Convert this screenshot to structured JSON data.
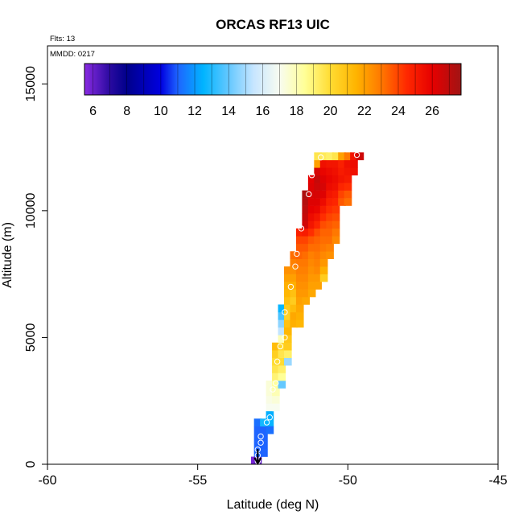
{
  "chart_data": {
    "type": "heatmap",
    "title": "ORCAS RF13 UIC",
    "annotations": {
      "flights": "Flts: 13",
      "date": "MMDD: 0217"
    },
    "xlabel": "Latitude (deg N)",
    "ylabel": "Altitude (m)",
    "xlim": [
      -60,
      -45
    ],
    "ylim": [
      0,
      16500
    ],
    "x_ticks": [
      -60,
      -55,
      -50,
      -45
    ],
    "x_tick_labels": [
      "-60",
      "-55",
      "-50",
      "-45"
    ],
    "y_ticks": [
      0,
      5000,
      10000,
      15000
    ],
    "y_tick_labels": [
      "0",
      "5000",
      "10000",
      "15000"
    ],
    "grid": false,
    "colorbar": {
      "range": [
        5.5,
        27.7
      ],
      "ticks": [
        6,
        8,
        10,
        12,
        14,
        16,
        18,
        20,
        22,
        24,
        26
      ],
      "tick_labels": [
        "6",
        "8",
        "10",
        "12",
        "14",
        "16",
        "18",
        "20",
        "22",
        "24",
        "26"
      ],
      "stops": [
        {
          "value": 5.5,
          "color": "#8a2be2"
        },
        {
          "value": 7.0,
          "color": "#2a0aa0"
        },
        {
          "value": 8.0,
          "color": "#00008b"
        },
        {
          "value": 10.0,
          "color": "#0000e0"
        },
        {
          "value": 11.0,
          "color": "#1e64ff"
        },
        {
          "value": 12.5,
          "color": "#00b4ff"
        },
        {
          "value": 14.0,
          "color": "#64c8ff"
        },
        {
          "value": 15.5,
          "color": "#c8e6ff"
        },
        {
          "value": 17.0,
          "color": "#f8fcf0"
        },
        {
          "value": 18.5,
          "color": "#ffff96"
        },
        {
          "value": 20.0,
          "color": "#ffdc32"
        },
        {
          "value": 21.5,
          "color": "#ffb400"
        },
        {
          "value": 23.0,
          "color": "#ff7800"
        },
        {
          "value": 24.5,
          "color": "#ff2800"
        },
        {
          "value": 26.0,
          "color": "#e60000"
        },
        {
          "value": 27.7,
          "color": "#a01414"
        }
      ]
    },
    "cell_size": {
      "lat": 0.25,
      "alt": 300
    },
    "cells": [
      [
        -53.1,
        150,
        5.8
      ],
      [
        -53.0,
        150,
        6.2
      ],
      [
        -53.0,
        450,
        11.0
      ],
      [
        -53.0,
        750,
        11.0
      ],
      [
        -53.0,
        1050,
        11.0
      ],
      [
        -53.0,
        1350,
        11.0
      ],
      [
        -53.0,
        1650,
        11.2
      ],
      [
        -52.8,
        450,
        11.0
      ],
      [
        -52.8,
        750,
        11.0
      ],
      [
        -52.8,
        1050,
        11.0
      ],
      [
        -52.8,
        1350,
        11.0
      ],
      [
        -52.8,
        1650,
        12.8
      ],
      [
        -52.6,
        1650,
        12.6
      ],
      [
        -52.6,
        1950,
        12.4
      ],
      [
        -52.6,
        1350,
        11.2
      ],
      [
        -52.6,
        2250,
        17.0
      ],
      [
        -52.6,
        2550,
        17.2
      ],
      [
        -52.6,
        2850,
        17.4
      ],
      [
        -52.6,
        3150,
        17.4
      ],
      [
        -52.4,
        2250,
        17.0
      ],
      [
        -52.4,
        2550,
        17.4
      ],
      [
        -52.4,
        2850,
        18.0
      ],
      [
        -52.4,
        3150,
        18.4
      ],
      [
        -52.4,
        3450,
        19.0
      ],
      [
        -52.4,
        3750,
        19.6
      ],
      [
        -52.4,
        4050,
        20.0
      ],
      [
        -52.4,
        4350,
        20.5
      ],
      [
        -52.4,
        4650,
        21.2
      ],
      [
        -52.2,
        3150,
        14.0
      ],
      [
        -52.2,
        3450,
        18.5
      ],
      [
        -52.2,
        3750,
        19.2
      ],
      [
        -52.2,
        4050,
        20.0
      ],
      [
        -52.2,
        4350,
        19.6
      ],
      [
        -52.2,
        4650,
        20.2
      ],
      [
        -52.2,
        4950,
        18.0
      ],
      [
        -52.2,
        5250,
        15.4
      ],
      [
        -52.2,
        5550,
        14.6
      ],
      [
        -52.2,
        5850,
        13.6
      ],
      [
        -52.2,
        6150,
        12.6
      ],
      [
        -52.0,
        4050,
        14.8
      ],
      [
        -52.0,
        4350,
        19.2
      ],
      [
        -52.0,
        4650,
        20.6
      ],
      [
        -52.0,
        4950,
        20.8
      ],
      [
        -52.0,
        5250,
        21.4
      ],
      [
        -52.0,
        5550,
        21.0
      ],
      [
        -52.0,
        5850,
        20.4
      ],
      [
        -52.0,
        6150,
        20.6
      ],
      [
        -52.0,
        6450,
        21.0
      ],
      [
        -52.0,
        6750,
        21.4
      ],
      [
        -52.0,
        7050,
        21.6
      ],
      [
        -52.0,
        7350,
        22.0
      ],
      [
        -52.0,
        7650,
        22.4
      ],
      [
        -51.8,
        5550,
        21.6
      ],
      [
        -51.8,
        5850,
        21.8
      ],
      [
        -51.8,
        6150,
        21.2
      ],
      [
        -51.8,
        6450,
        20.6
      ],
      [
        -51.8,
        6750,
        21.0
      ],
      [
        -51.8,
        7050,
        21.6
      ],
      [
        -51.8,
        7350,
        22.0
      ],
      [
        -51.8,
        7650,
        22.4
      ],
      [
        -51.8,
        7950,
        22.8
      ],
      [
        -51.8,
        8250,
        23.2
      ],
      [
        -51.6,
        5550,
        21.4
      ],
      [
        -51.6,
        5850,
        21.6
      ],
      [
        -51.6,
        6150,
        21.8
      ],
      [
        -51.6,
        6450,
        22.0
      ],
      [
        -51.6,
        6750,
        22.2
      ],
      [
        -51.6,
        7050,
        22.4
      ],
      [
        -51.6,
        7350,
        22.6
      ],
      [
        -51.6,
        7650,
        22.8
      ],
      [
        -51.6,
        7950,
        23.0
      ],
      [
        -51.6,
        8250,
        23.4
      ],
      [
        -51.6,
        8550,
        23.6
      ],
      [
        -51.6,
        8850,
        24.0
      ],
      [
        -51.6,
        9150,
        24.8
      ],
      [
        -51.4,
        6450,
        21.8
      ],
      [
        -51.4,
        6750,
        22.2
      ],
      [
        -51.4,
        7050,
        22.4
      ],
      [
        -51.4,
        7350,
        22.6
      ],
      [
        -51.4,
        7650,
        22.8
      ],
      [
        -51.4,
        7950,
        23.0
      ],
      [
        -51.4,
        8250,
        23.2
      ],
      [
        -51.4,
        8550,
        23.6
      ],
      [
        -51.4,
        8850,
        24.0
      ],
      [
        -51.4,
        9150,
        25.0
      ],
      [
        -51.4,
        9450,
        26.5
      ],
      [
        -51.4,
        9750,
        26.8
      ],
      [
        -51.4,
        10050,
        27.0
      ],
      [
        -51.4,
        10350,
        27.2
      ],
      [
        -51.4,
        10650,
        27.4
      ],
      [
        -51.2,
        6750,
        21.8
      ],
      [
        -51.2,
        7050,
        22.0
      ],
      [
        -51.2,
        7350,
        22.2
      ],
      [
        -51.2,
        7650,
        22.4
      ],
      [
        -51.2,
        7950,
        22.6
      ],
      [
        -51.2,
        8250,
        22.8
      ],
      [
        -51.2,
        8550,
        23.2
      ],
      [
        -51.2,
        8850,
        23.6
      ],
      [
        -51.2,
        9150,
        24.4
      ],
      [
        -51.2,
        9450,
        25.2
      ],
      [
        -51.2,
        9750,
        25.6
      ],
      [
        -51.2,
        10050,
        26.0
      ],
      [
        -51.2,
        10350,
        26.2
      ],
      [
        -51.2,
        10650,
        26.4
      ],
      [
        -51.2,
        10950,
        26.2
      ],
      [
        -51.2,
        11250,
        26.0
      ],
      [
        -51.0,
        7050,
        22.0
      ],
      [
        -51.0,
        7350,
        22.2
      ],
      [
        -51.0,
        7650,
        22.6
      ],
      [
        -51.0,
        7950,
        22.8
      ],
      [
        -51.0,
        8250,
        23.0
      ],
      [
        -51.0,
        8550,
        23.2
      ],
      [
        -51.0,
        8850,
        23.4
      ],
      [
        -51.0,
        9150,
        23.8
      ],
      [
        -51.0,
        9450,
        24.6
      ],
      [
        -51.0,
        9750,
        25.2
      ],
      [
        -51.0,
        10050,
        25.8
      ],
      [
        -51.0,
        10350,
        26.2
      ],
      [
        -51.0,
        10650,
        26.4
      ],
      [
        -51.0,
        10950,
        26.6
      ],
      [
        -51.0,
        11250,
        26.8
      ],
      [
        -51.0,
        11550,
        26.4
      ],
      [
        -51.0,
        11850,
        22.0
      ],
      [
        -51.0,
        12150,
        19.6
      ],
      [
        -50.8,
        7350,
        20.6
      ],
      [
        -50.8,
        7650,
        21.6
      ],
      [
        -50.8,
        7950,
        22.2
      ],
      [
        -50.8,
        8250,
        22.6
      ],
      [
        -50.8,
        8550,
        23.0
      ],
      [
        -50.8,
        8850,
        23.2
      ],
      [
        -50.8,
        9150,
        23.4
      ],
      [
        -50.8,
        9450,
        23.8
      ],
      [
        -50.8,
        9750,
        24.4
      ],
      [
        -50.8,
        10050,
        25.0
      ],
      [
        -50.8,
        10350,
        25.6
      ],
      [
        -50.8,
        10650,
        26.2
      ],
      [
        -50.8,
        10950,
        26.4
      ],
      [
        -50.8,
        11250,
        26.2
      ],
      [
        -50.8,
        11550,
        25.8
      ],
      [
        -50.8,
        11850,
        25.4
      ],
      [
        -50.8,
        12150,
        19.4
      ],
      [
        -50.6,
        8250,
        22.4
      ],
      [
        -50.6,
        8550,
        22.8
      ],
      [
        -50.6,
        8850,
        23.2
      ],
      [
        -50.6,
        9150,
        23.4
      ],
      [
        -50.6,
        9450,
        23.6
      ],
      [
        -50.6,
        9750,
        24.0
      ],
      [
        -50.6,
        10050,
        24.4
      ],
      [
        -50.6,
        10350,
        24.8
      ],
      [
        -50.6,
        10650,
        25.2
      ],
      [
        -50.6,
        10950,
        25.6
      ],
      [
        -50.6,
        11250,
        25.8
      ],
      [
        -50.6,
        11550,
        25.6
      ],
      [
        -50.6,
        11850,
        25.2
      ],
      [
        -50.6,
        12150,
        19.2
      ],
      [
        -50.4,
        8850,
        22.6
      ],
      [
        -50.4,
        9150,
        23.0
      ],
      [
        -50.4,
        9450,
        23.4
      ],
      [
        -50.4,
        9750,
        23.8
      ],
      [
        -50.4,
        10050,
        24.2
      ],
      [
        -50.4,
        10350,
        24.6
      ],
      [
        -50.4,
        10650,
        25.0
      ],
      [
        -50.4,
        10950,
        25.4
      ],
      [
        -50.4,
        11250,
        25.6
      ],
      [
        -50.4,
        11550,
        25.4
      ],
      [
        -50.4,
        11850,
        25.2
      ],
      [
        -50.4,
        12150,
        19.6
      ],
      [
        -50.2,
        10350,
        23.6
      ],
      [
        -50.2,
        10650,
        24.0
      ],
      [
        -50.2,
        10950,
        24.6
      ],
      [
        -50.2,
        11250,
        25.2
      ],
      [
        -50.2,
        11550,
        25.0
      ],
      [
        -50.2,
        11850,
        24.8
      ],
      [
        -50.2,
        12150,
        22.0
      ],
      [
        -50.0,
        10350,
        23.2
      ],
      [
        -50.0,
        10650,
        23.6
      ],
      [
        -50.0,
        10950,
        24.4
      ],
      [
        -50.0,
        11250,
        25.0
      ],
      [
        -50.0,
        11550,
        25.2
      ],
      [
        -50.0,
        11850,
        25.4
      ],
      [
        -50.0,
        12150,
        23.0
      ],
      [
        -49.8,
        11550,
        25.4
      ],
      [
        -49.8,
        11850,
        25.6
      ],
      [
        -49.8,
        12150,
        25.2
      ],
      [
        -49.6,
        12150,
        26.6
      ]
    ],
    "markers": [
      [
        -53.0,
        120
      ],
      [
        -53.0,
        350
      ],
      [
        -53.0,
        580
      ],
      [
        -52.9,
        850
      ],
      [
        -52.9,
        1100
      ],
      [
        -52.7,
        1650
      ],
      [
        -52.6,
        1850
      ],
      [
        -52.5,
        2950
      ],
      [
        -52.4,
        3200
      ],
      [
        -52.35,
        4050
      ],
      [
        -52.25,
        4650
      ],
      [
        -52.1,
        5000
      ],
      [
        -52.1,
        6000
      ],
      [
        -51.9,
        7000
      ],
      [
        -51.75,
        7800
      ],
      [
        -51.7,
        8300
      ],
      [
        -51.55,
        9300
      ],
      [
        -51.3,
        10650
      ],
      [
        -51.2,
        11400
      ],
      [
        -50.9,
        12100
      ],
      [
        -49.7,
        12200
      ]
    ],
    "arrow": {
      "lat": -53.0,
      "from_alt": 600,
      "to_alt": 0
    }
  }
}
